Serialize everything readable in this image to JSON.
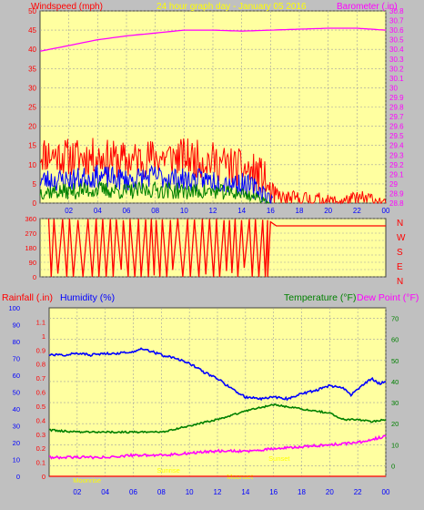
{
  "colors": {
    "background": "#c0c0c0",
    "plot_bg": "#ffffa0",
    "grid": "#a0a0a0",
    "wind": "#ff0000",
    "gust": "#ff0000",
    "avg": "#0000ff",
    "low": "#008000",
    "baro": "#ff00ff",
    "dir": "#ff0000",
    "humidity": "#0000ff",
    "temperature": "#008000",
    "dewpoint": "#ff00ff",
    "rain": "#ff0000",
    "title": "#ffff00",
    "axis_left": "#ff0000",
    "axis_right": "#ff00ff",
    "label_blue": "#0000ff",
    "label_green": "#008000",
    "annotation": "#ffff00"
  },
  "header": {
    "left_label": "Windspeed (mph)",
    "title": "24 hour graph day - January 05 2016",
    "right_label": "Barometer (.in)"
  },
  "bottom_header": {
    "rain_label": "Rainfall (.in)",
    "humidity_label": "Humidity (%)",
    "temp_label": "Temperature (°F)",
    "dew_label": "Dew Point (°F)"
  },
  "annotations": [
    "Moonrise",
    "Sunrise",
    "Sunset",
    "Moonset"
  ],
  "chart_data": [
    {
      "type": "line",
      "x_ticks": [
        "02",
        "04",
        "06",
        "08",
        "10",
        "12",
        "14",
        "16",
        "18",
        "20",
        "22",
        "00"
      ],
      "y_left": {
        "label": "Windspeed (mph)",
        "range": [
          0,
          50
        ],
        "ticks": [
          0,
          5,
          10,
          15,
          20,
          25,
          30,
          35,
          40,
          45,
          50
        ]
      },
      "y_right": {
        "label": "Barometer (.in)",
        "range": [
          28.8,
          30.8
        ],
        "ticks": [
          "28.8",
          "28.9",
          "29",
          "29.1",
          "29.2",
          "29.3",
          "29.4",
          "29.5",
          "29.6",
          "29.7",
          "29.8",
          "29.9",
          "30",
          "30.1",
          "30.2",
          "30.3",
          "30.4",
          "30.5",
          "30.6",
          "30.7",
          "30.8"
        ]
      },
      "series": [
        {
          "key": "gust",
          "hours": [
            0,
            2,
            4,
            6,
            8,
            10,
            12,
            14,
            15.5,
            16,
            17,
            18,
            19,
            20,
            21,
            22,
            23,
            24
          ],
          "values": [
            13,
            12,
            12,
            11,
            12,
            12,
            11,
            9,
            7,
            2,
            1,
            1,
            1,
            0.5,
            0.5,
            1,
            1,
            0
          ]
        },
        {
          "key": "wind",
          "hours": [
            0,
            2,
            4,
            6,
            8,
            10,
            12,
            14,
            15.5,
            16,
            17,
            18,
            20,
            22,
            24
          ],
          "values": [
            6,
            6,
            7,
            6,
            7,
            6,
            6,
            5,
            3,
            1,
            0.5,
            0.5,
            0.3,
            0.3,
            0.2
          ]
        },
        {
          "key": "low",
          "hours": [
            0,
            2,
            4,
            6,
            8,
            10,
            12,
            14,
            15.5,
            16
          ],
          "values": [
            3,
            3,
            3.5,
            3,
            3.5,
            3,
            3,
            2.5,
            1,
            0
          ]
        },
        {
          "key": "baro",
          "hours": [
            0,
            2,
            4,
            6,
            8,
            10,
            12,
            14,
            16,
            18,
            20,
            22,
            24
          ],
          "values": [
            30.38,
            30.44,
            30.5,
            30.54,
            30.57,
            30.6,
            30.6,
            30.59,
            30.6,
            30.61,
            30.62,
            30.62,
            30.6
          ]
        }
      ]
    },
    {
      "type": "line",
      "x_ticks": [
        "02",
        "04",
        "06",
        "08",
        "10",
        "12",
        "14",
        "16",
        "18",
        "20",
        "22",
        "00"
      ],
      "y_left": {
        "range": [
          0,
          360
        ],
        "ticks": [
          0,
          45,
          90,
          135,
          180,
          225,
          270,
          315,
          360
        ]
      },
      "y_right_labels": [
        "N",
        "W",
        "S",
        "E",
        "N"
      ],
      "series": [
        {
          "key": "dir",
          "hours": [
            0.6,
            16.4,
            24
          ],
          "values": [
            360,
            315,
            315
          ],
          "note_segment": "0.6-15.8 oscillating 0-360"
        }
      ]
    },
    {
      "type": "line",
      "x_ticks": [
        "02",
        "04",
        "06",
        "08",
        "10",
        "12",
        "14",
        "16",
        "18",
        "20",
        "22",
        "00"
      ],
      "y_left_rain": {
        "label": "Rainfall (.in)",
        "range": [
          0,
          1.2
        ],
        "ticks": [
          "0",
          "0.1",
          "0.2",
          "0.3",
          "0.4",
          "0.5",
          "0.6",
          "0.7",
          "0.8",
          "0.9",
          "1",
          "1.1"
        ]
      },
      "y_left_humidity": {
        "label": "Humidity (%)",
        "range": [
          0,
          100
        ],
        "ticks": [
          0,
          10,
          20,
          30,
          40,
          50,
          60,
          70,
          80,
          90,
          100
        ]
      },
      "y_right": {
        "label": "Temperature (°F)",
        "range": [
          -5,
          75
        ],
        "ticks": [
          0,
          10,
          20,
          30,
          40,
          50,
          60,
          70
        ]
      },
      "series": [
        {
          "key": "humidity",
          "hours": [
            0,
            1,
            2,
            3,
            4,
            5,
            6,
            6.5,
            7,
            8,
            9,
            10,
            11,
            12,
            13,
            14,
            15,
            16,
            17,
            18,
            19,
            20,
            21,
            21.5,
            22,
            23,
            23.5,
            24
          ],
          "values": [
            72,
            72,
            73,
            72,
            73,
            73,
            74,
            76,
            75,
            72,
            70,
            67,
            62,
            58,
            52,
            47,
            46,
            47,
            46,
            49,
            51,
            54,
            52,
            48,
            52,
            58,
            55,
            56
          ]
        },
        {
          "key": "temperature",
          "hours": [
            0,
            2,
            4,
            6,
            8,
            10,
            12,
            14,
            16,
            18,
            19,
            20,
            21,
            22,
            23,
            24
          ],
          "values": [
            17,
            16,
            16,
            16,
            16,
            19,
            22,
            26,
            29,
            27,
            26,
            25,
            22,
            22,
            21,
            22
          ]
        },
        {
          "key": "dewpoint",
          "hours": [
            0,
            2,
            4,
            6,
            8,
            10,
            12,
            14,
            16,
            18,
            20,
            22,
            24
          ],
          "values": [
            4,
            4,
            4,
            5,
            5,
            6,
            7,
            7,
            8,
            9,
            10,
            11,
            14
          ]
        },
        {
          "key": "rain",
          "hours": [
            0,
            24
          ],
          "values": [
            0,
            0
          ]
        }
      ]
    }
  ]
}
